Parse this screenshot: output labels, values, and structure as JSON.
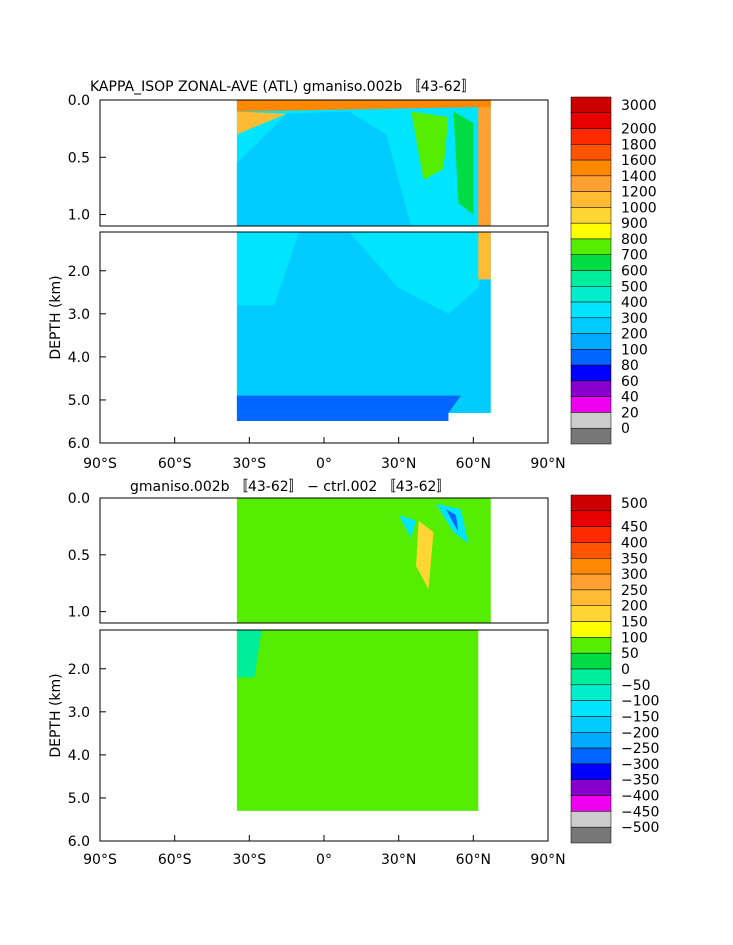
{
  "chart_data": [
    {
      "type": "heatmap",
      "title": "KAPPA_ISOP ZONAL-AVE (ATL) gmaniso.002b 〚43-62〛",
      "ylabel": "DEPTH (km)",
      "xlim": [
        -90,
        90
      ],
      "ylim_upper": [
        0.0,
        1.1
      ],
      "ylim_lower": [
        1.1,
        6.0
      ],
      "xticks": [
        "90°S",
        "60°S",
        "30°S",
        "0°",
        "30°N",
        "60°N",
        "90°N"
      ],
      "yticks_upper": [
        "0.0",
        "0.5",
        "1.0"
      ],
      "yticks_lower": [
        "2.0",
        "3.0",
        "4.0",
        "5.0",
        "6.0"
      ],
      "levels": [
        "3000",
        "2000",
        "1800",
        "1600",
        "1400",
        "1200",
        "1000",
        "900",
        "800",
        "700",
        "600",
        "500",
        "400",
        "300",
        "200",
        "100",
        "80",
        "60",
        "40",
        "20",
        "0"
      ],
      "colors": [
        "#cc0000",
        "#e80000",
        "#ff2a00",
        "#ff5500",
        "#ff8800",
        "#ffa030",
        "#ffbb33",
        "#ffd633",
        "#ffff00",
        "#55ee00",
        "#00dd44",
        "#00ee99",
        "#00eecc",
        "#00e5ff",
        "#00ccff",
        "#00aaff",
        "#0066ff",
        "#0000ff",
        "#8800cc",
        "#ee00ee",
        "#cccccc",
        "#777777"
      ]
    },
    {
      "type": "heatmap",
      "title": "gmaniso.002b 〚43-62〛 − ctrl.002 〚43-62〛",
      "ylabel": "DEPTH (km)",
      "xlim": [
        -90,
        90
      ],
      "ylim_upper": [
        0.0,
        1.1
      ],
      "ylim_lower": [
        1.1,
        6.0
      ],
      "xticks": [
        "90°S",
        "60°S",
        "30°S",
        "0°",
        "30°N",
        "60°N",
        "90°N"
      ],
      "yticks_upper": [
        "0.0",
        "0.5",
        "1.0"
      ],
      "yticks_lower": [
        "2.0",
        "3.0",
        "4.0",
        "5.0",
        "6.0"
      ],
      "levels": [
        "500",
        "450",
        "400",
        "350",
        "300",
        "250",
        "200",
        "150",
        "100",
        "50",
        "0",
        "−50",
        "−100",
        "−150",
        "−200",
        "−250",
        "−300",
        "−350",
        "−400",
        "−450",
        "−500"
      ],
      "colors": [
        "#cc0000",
        "#e80000",
        "#ff2a00",
        "#ff5500",
        "#ff8800",
        "#ffa030",
        "#ffbb33",
        "#ffd633",
        "#ffff00",
        "#55ee00",
        "#00dd44",
        "#00ee99",
        "#00eecc",
        "#00e5ff",
        "#00ccff",
        "#00aaff",
        "#0066ff",
        "#0000ff",
        "#8800cc",
        "#ee00ee",
        "#cccccc",
        "#777777"
      ]
    }
  ]
}
